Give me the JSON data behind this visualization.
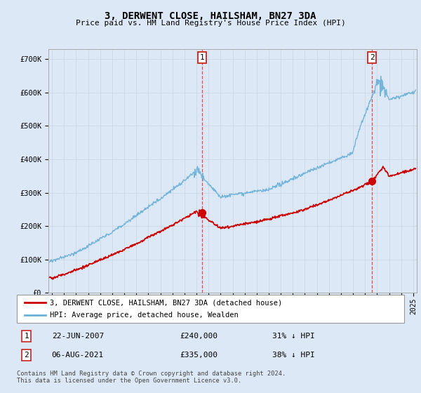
{
  "title": "3, DERWENT CLOSE, HAILSHAM, BN27 3DA",
  "subtitle": "Price paid vs. HM Land Registry's House Price Index (HPI)",
  "bg_color": "#dce8f5",
  "plot_bg_color": "#dce8f5",
  "legend_line1": "3, DERWENT CLOSE, HAILSHAM, BN27 3DA (detached house)",
  "legend_line2": "HPI: Average price, detached house, Wealden",
  "red_color": "#cc0000",
  "blue_color": "#6ab0d8",
  "marker1_date_x": 2007.47,
  "marker2_date_x": 2021.58,
  "marker1_price": 240000,
  "marker2_price": 335000,
  "footer_line1": "Contains HM Land Registry data © Crown copyright and database right 2024.",
  "footer_line2": "This data is licensed under the Open Government Licence v3.0.",
  "ylim_max": 730000,
  "xlim_start": 1994.7,
  "xlim_end": 2025.3,
  "yticks": [
    0,
    100000,
    200000,
    300000,
    400000,
    500000,
    600000,
    700000
  ],
  "ytick_labels": [
    "£0",
    "£100K",
    "£200K",
    "£300K",
    "£400K",
    "£500K",
    "£600K",
    "£700K"
  ]
}
